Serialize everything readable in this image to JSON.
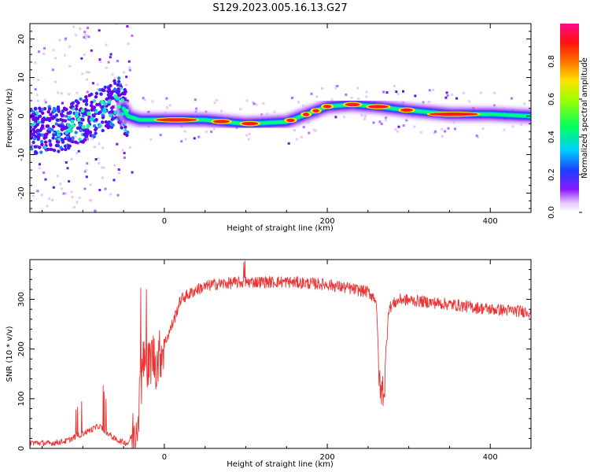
{
  "title": "S129.2023.005.16.13.G27",
  "colors": {
    "snr_line": "#ee3333",
    "frame": "#000000"
  },
  "chart_data": [
    {
      "type": "heatmap",
      "xlabel": "Height of straight line (km)",
      "ylabel": "Frequency (Hz)",
      "xlim": [
        -165,
        450
      ],
      "ylim": [
        -25,
        24
      ],
      "xticks": [
        0,
        200,
        400
      ],
      "yticks": [
        -20,
        -10,
        0,
        10,
        20
      ],
      "colorbar": {
        "label": "Normalized spectral amplitude",
        "range": [
          0,
          1
        ],
        "ticks": [
          "0.0",
          "0.2",
          "0.4",
          "0.6",
          "0.8"
        ],
        "colormap": "rainbow (white → violet → blue → cyan → green → yellow → red → magenta)"
      },
      "ridge": {
        "description": "dominant frequency vs height",
        "x": [
          -165,
          -120,
          -90,
          -70,
          -55,
          -45,
          -30,
          0,
          50,
          100,
          150,
          175,
          200,
          230,
          260,
          300,
          350,
          400,
          450
        ],
        "y": [
          -4,
          -3,
          0,
          2,
          4,
          0,
          -1,
          -1,
          -1,
          -2,
          -1.5,
          0.5,
          2.5,
          3,
          2.5,
          1.5,
          0.5,
          0.5,
          0
        ]
      }
    },
    {
      "type": "line",
      "xlabel": "Height of straight line (km)",
      "ylabel": "SNR (10 * v/v)",
      "xlim": [
        -165,
        450
      ],
      "ylim": [
        0,
        380
      ],
      "xticks": [
        0,
        200,
        400
      ],
      "yticks": [
        0,
        100,
        200,
        300
      ],
      "series": [
        {
          "x": [
            -165,
            -140,
            -120,
            -100,
            -80,
            -60,
            -45,
            -35,
            -30,
            -25,
            -20,
            -15,
            -10,
            0,
            10,
            20,
            40,
            60,
            100,
            150,
            200,
            250,
            260,
            263,
            265,
            268,
            270,
            275,
            280,
            290,
            320,
            350,
            400,
            450
          ],
          "y": [
            12,
            10,
            15,
            30,
            45,
            18,
            10,
            40,
            110,
            180,
            160,
            190,
            170,
            210,
            250,
            300,
            320,
            330,
            335,
            335,
            330,
            315,
            300,
            170,
            110,
            120,
            115,
            280,
            290,
            300,
            295,
            290,
            280,
            275
          ]
        }
      ]
    }
  ]
}
